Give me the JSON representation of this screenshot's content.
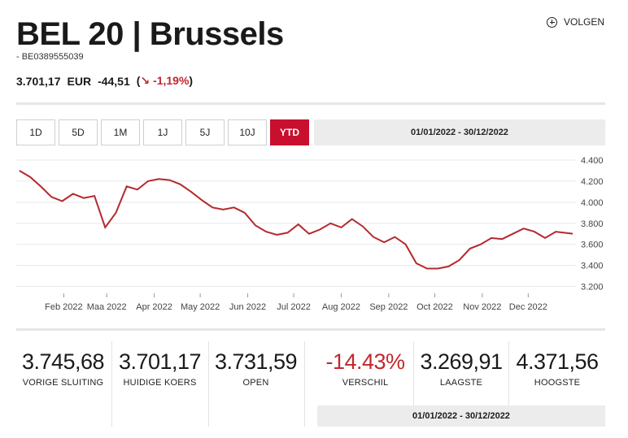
{
  "header": {
    "title": "BEL 20 | Brussels",
    "isin": "- BE0389555039",
    "follow_label": "VOLGEN"
  },
  "quote": {
    "price": "3.701,17",
    "currency": "EUR",
    "change": "-44,51",
    "change_pct_open": "(",
    "change_pct": "-1,19%",
    "change_pct_close": ")"
  },
  "tabs": [
    {
      "label": "1D",
      "active": false
    },
    {
      "label": "5D",
      "active": false
    },
    {
      "label": "1M",
      "active": false
    },
    {
      "label": "1J",
      "active": false
    },
    {
      "label": "5J",
      "active": false
    },
    {
      "label": "10J",
      "active": false
    },
    {
      "label": "YTD",
      "active": true
    }
  ],
  "date_range": "01/01/2022 - 30/12/2022",
  "stats": {
    "prev_close": {
      "value": "3.745,68",
      "label": "VORIGE SLUITING"
    },
    "current": {
      "value": "3.701,17",
      "label": "HUIDIGE KOERS"
    },
    "open": {
      "value": "3.731,59",
      "label": "OPEN"
    },
    "change": {
      "value": "-14.43%",
      "label": "VERSCHIL"
    },
    "low": {
      "value": "3.269,91",
      "label": "LAAGSTE"
    },
    "high": {
      "value": "4.371,56",
      "label": "HOOGSTE"
    },
    "range": "01/01/2022 - 30/12/2022"
  },
  "colors": {
    "line": "#b5282e",
    "accent": "#c8102e",
    "negative": "#c0282d"
  },
  "chart_data": {
    "type": "line",
    "x": [
      "2022-01-03",
      "2022-01-10",
      "2022-01-17",
      "2022-01-24",
      "2022-01-31",
      "2022-02-07",
      "2022-02-14",
      "2022-02-21",
      "2022-02-28",
      "2022-03-07",
      "2022-03-14",
      "2022-03-21",
      "2022-03-28",
      "2022-04-04",
      "2022-04-11",
      "2022-04-18",
      "2022-04-25",
      "2022-05-02",
      "2022-05-09",
      "2022-05-16",
      "2022-05-23",
      "2022-05-30",
      "2022-06-06",
      "2022-06-13",
      "2022-06-20",
      "2022-06-27",
      "2022-07-04",
      "2022-07-11",
      "2022-07-18",
      "2022-07-25",
      "2022-08-01",
      "2022-08-08",
      "2022-08-15",
      "2022-08-22",
      "2022-08-29",
      "2022-09-05",
      "2022-09-12",
      "2022-09-19",
      "2022-09-26",
      "2022-10-03",
      "2022-10-10",
      "2022-10-17",
      "2022-10-24",
      "2022-10-31",
      "2022-11-07",
      "2022-11-14",
      "2022-11-21",
      "2022-11-28",
      "2022-12-05",
      "2022-12-12",
      "2022-12-19",
      "2022-12-30"
    ],
    "series": [
      {
        "values": [
          4300,
          4240,
          4150,
          4050,
          4010,
          4080,
          4040,
          4060,
          3760,
          3900,
          4150,
          4120,
          4200,
          4220,
          4210,
          4170,
          4100,
          4020,
          3950,
          3930,
          3950,
          3900,
          3780,
          3720,
          3690,
          3710,
          3790,
          3700,
          3740,
          3800,
          3760,
          3840,
          3770,
          3670,
          3620,
          3670,
          3600,
          3420,
          3370,
          3370,
          3390,
          3450,
          3560,
          3600,
          3660,
          3650,
          3700,
          3750,
          3720,
          3660,
          3720,
          3701
        ]
      }
    ],
    "x_ticks": [
      "Feb 2022",
      "Maa 2022",
      "Apr 2022",
      "May 2022",
      "Jun 2022",
      "Jul 2022",
      "Aug 2022",
      "Sep 2022",
      "Oct 2022",
      "Nov 2022",
      "Dec 2022"
    ],
    "x_tick_dates": [
      "2022-02-01",
      "2022-03-01",
      "2022-04-01",
      "2022-05-01",
      "2022-06-01",
      "2022-07-01",
      "2022-08-01",
      "2022-09-01",
      "2022-10-01",
      "2022-11-01",
      "2022-12-01"
    ],
    "y_ticks": [
      "4.400",
      "4.200",
      "4.000",
      "3.800",
      "3.600",
      "3.400",
      "3.200"
    ],
    "y_tick_values": [
      4400,
      4200,
      4000,
      3800,
      3600,
      3400,
      3200
    ],
    "ylim": [
      3150,
      4400
    ],
    "xlim": [
      "2022-01-01",
      "2022-12-30"
    ],
    "title": "",
    "xlabel": "",
    "ylabel": "",
    "grid": "horizontal",
    "y_axis_position": "right"
  }
}
